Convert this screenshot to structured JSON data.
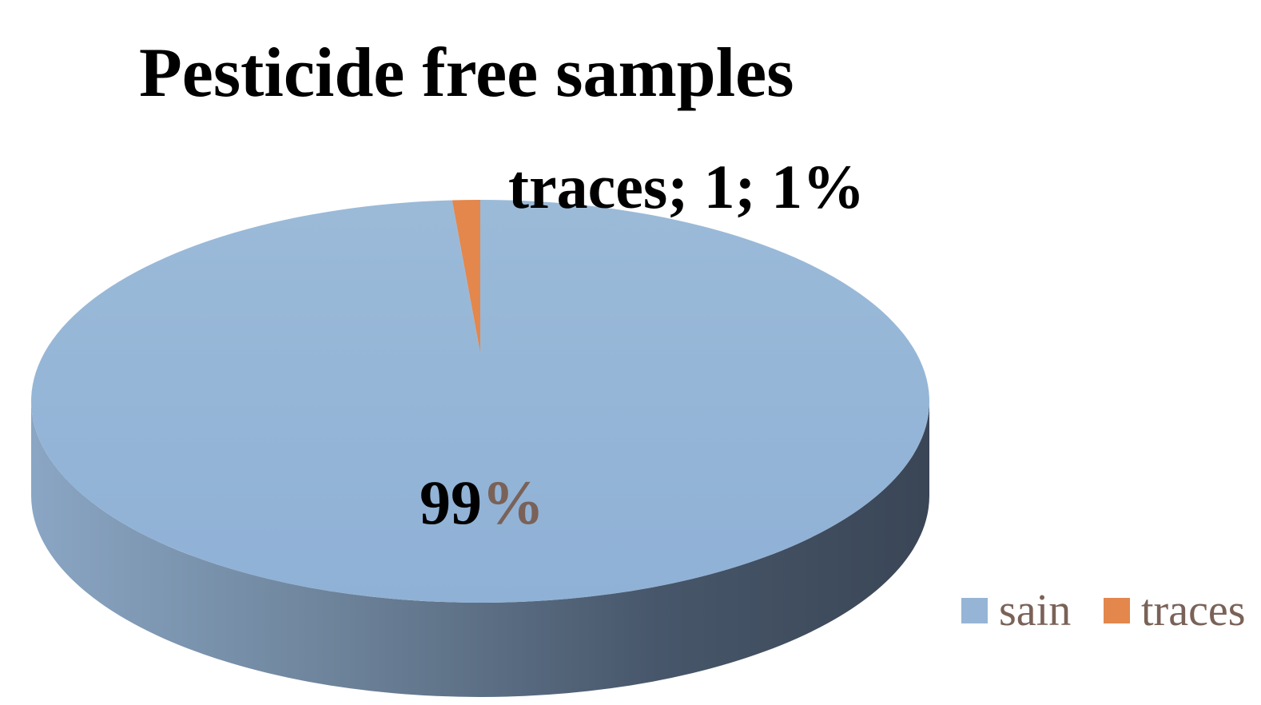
{
  "chart_data": {
    "type": "pie",
    "title": "Pesticide free samples",
    "categories": [
      "sain",
      "traces"
    ],
    "values": [
      99,
      1
    ],
    "percent_labels": [
      "99%",
      "1%"
    ],
    "data_labels": {
      "sain_number": "99",
      "sain_percent_sign": "%",
      "traces": "traces; 1; 1%"
    },
    "colors": {
      "sain_top": "#96b5d6",
      "sain_side_light": "#7590ad",
      "sain_side_dark": "#3a4656",
      "traces": "#e3874d",
      "percent_sign": "#7a6258",
      "legend_text": "#7a6258"
    },
    "legend": {
      "position": "bottom-right",
      "entries": [
        "sain",
        "traces"
      ]
    },
    "style": "3d-pie"
  }
}
